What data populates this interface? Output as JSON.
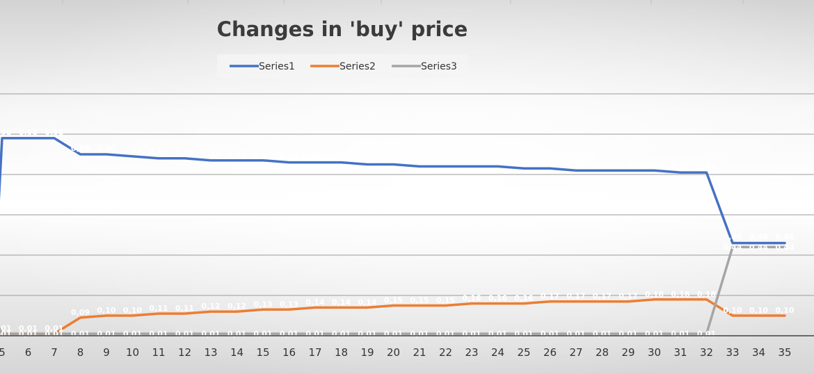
{
  "chart_data": {
    "type": "line",
    "title": "Changes in 'buy' price",
    "xlabel": "",
    "ylabel": "",
    "categories": [
      "5",
      "6",
      "7",
      "8",
      "9",
      "10",
      "11",
      "12",
      "13",
      "14",
      "15",
      "16",
      "17",
      "18",
      "19",
      "20",
      "21",
      "22",
      "23",
      "24",
      "25",
      "26",
      "27",
      "28",
      "29",
      "30",
      "31",
      "32",
      "33",
      "34",
      "35"
    ],
    "ylim": [
      0,
      1.2
    ],
    "grid": true,
    "legend_position": "top",
    "series": [
      {
        "name": "Series1",
        "color": "#4472C4",
        "values": [
          0.98,
          0.98,
          0.98,
          0.9,
          0.9,
          0.89,
          0.88,
          0.88,
          0.87,
          0.87,
          0.87,
          0.86,
          0.86,
          0.86,
          0.85,
          0.85,
          0.84,
          0.84,
          0.84,
          0.84,
          0.83,
          0.83,
          0.82,
          0.82,
          0.82,
          0.82,
          0.81,
          0.81,
          0.46,
          0.46,
          0.46
        ],
        "labels": [
          "0,98",
          "0,98",
          "0,98",
          "0,90",
          "0,90",
          "0,89",
          "0,88",
          "0,88",
          "0,87",
          "0,87",
          "0,87",
          "0,86",
          "0,86",
          "0,86",
          "0,85",
          "0,85",
          "0,84",
          "0,84",
          "0,84",
          "0,84",
          "0,83",
          "0,83",
          "0,82",
          "0,82",
          "0,82",
          "0,82",
          "0,81",
          "0,81",
          "0,46",
          "0,46",
          "0,46"
        ]
      },
      {
        "name": "Series2",
        "color": "#ED7D31",
        "values": [
          0.01,
          0.01,
          0.01,
          0.09,
          0.1,
          0.1,
          0.11,
          0.11,
          0.12,
          0.12,
          0.13,
          0.13,
          0.14,
          0.14,
          0.14,
          0.15,
          0.15,
          0.15,
          0.16,
          0.16,
          0.16,
          0.17,
          0.17,
          0.17,
          0.17,
          0.18,
          0.18,
          0.18,
          0.1,
          0.1,
          0.1
        ],
        "labels": [
          "0,01",
          "0,01",
          "0,01",
          "0,09",
          "0,10",
          "0,10",
          "0,11",
          "0,11",
          "0,12",
          "0,12",
          "0,13",
          "0,13",
          "0,14",
          "0,14",
          "0,14",
          "0,15",
          "0,15",
          "0,15",
          "0,16",
          "0,16",
          "0,16",
          "0,17",
          "0,17",
          "0,17",
          "0,17",
          "0,18",
          "0,18",
          "0,18",
          "0,10",
          "0,10",
          "0,10"
        ]
      },
      {
        "name": "Series3",
        "color": "#A5A5A5",
        "values": [
          0.01,
          0.01,
          0.01,
          0.01,
          0.01,
          0.01,
          0.01,
          0.01,
          0.01,
          0.01,
          0.01,
          0.01,
          0.01,
          0.01,
          0.01,
          0.01,
          0.01,
          0.01,
          0.01,
          0.01,
          0.01,
          0.01,
          0.01,
          0.01,
          0.01,
          0.01,
          0.01,
          0.01,
          0.44,
          0.44,
          0.44
        ],
        "labels": [
          "0,01",
          "0,01",
          "0,01",
          "0,01",
          "0,01",
          "0,01",
          "0,01",
          "0,01",
          "0,01",
          "0,01",
          "0,01",
          "0,01",
          "0,01",
          "0,01",
          "0,01",
          "0,01",
          "0,01",
          "0,01",
          "0,01",
          "0,01",
          "0,01",
          "0,01",
          "0,01",
          "0,01",
          "0,01",
          "0,01",
          "0,01",
          "0,01",
          "0,44",
          "0,44",
          "0,44"
        ]
      }
    ]
  }
}
